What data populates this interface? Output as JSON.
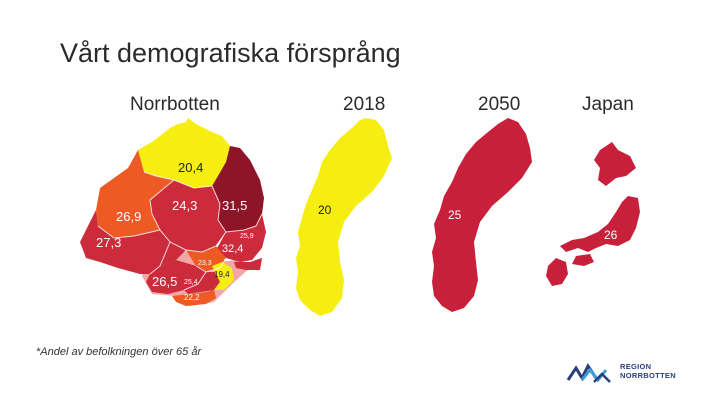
{
  "slide": {
    "title": "Vårt demografiska försprång",
    "footnote": "*Andel av befolkningen över 65 år"
  },
  "columns": {
    "norrbotten": "Norrbotten",
    "y2018": "2018",
    "y2050": "2050",
    "japan": "Japan"
  },
  "norrbotten_map": {
    "r1": "20,4",
    "r2": "24,3",
    "r3": "31,5",
    "r4": "26,9",
    "r5": "27,3",
    "r6": "32,4",
    "r7": "26,5",
    "r8": "25,4",
    "r9": "22,2",
    "r10": "19,4",
    "r11": "23,3",
    "r12": "25,9"
  },
  "sweden_2018": {
    "value": "20"
  },
  "sweden_2050": {
    "value": "25"
  },
  "japan": {
    "value": "26"
  },
  "logo": {
    "line1": "REGION",
    "line2": "NORRBOTTEN"
  },
  "colors": {
    "yellow": "#f5ee10",
    "orange": "#ee5a24",
    "red": "#cc2b3b",
    "darkred": "#8e1528",
    "crimson": "#c8203a"
  }
}
